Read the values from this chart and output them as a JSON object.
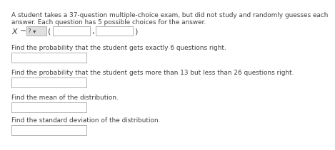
{
  "background_color": "#ffffff",
  "intro_line1": "A student takes a 37-question multiple-choice exam, but did not study and randomly guesses each",
  "intro_line2": "answer. Each question has 5 possible choices for the answer.",
  "dropdown_label": "? ▾",
  "q1": "Find the probability that the student gets exactly 6 questions right.",
  "q2": "Find the probability that the student gets more than 13 but less than 26 questions right.",
  "q3": "Find the mean of the distribution.",
  "q4": "Find the standard deviation of the distribution.",
  "text_color": "#404040",
  "box_facecolor": "#ffffff",
  "box_edgecolor": "#b0b0b0",
  "dropdown_facecolor": "#e0e0e0",
  "font_size_intro": 6.4,
  "font_size_q": 6.4,
  "font_size_dist": 8.0,
  "font_size_small": 6.0
}
